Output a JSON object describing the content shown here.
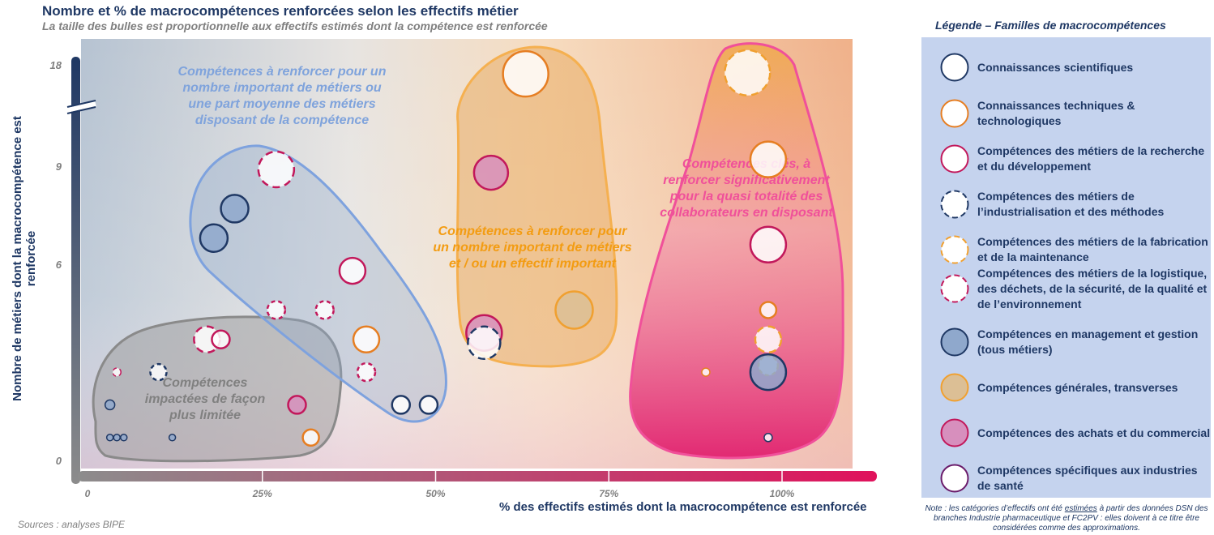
{
  "title": "Nombre et % de macrocompétences renforcées selon les effectifs métier",
  "subtitle": "La taille des bulles est proportionnelle aux effectifs estimés dont la compétence est renforcée",
  "sources": "Sources : analyses BIPE",
  "note_before": "Note : les catégories d’effectifs ont été ",
  "note_underlined": "estimées",
  "note_after": " à partir des données DSN des branches Industrie pharmaceutique et FC2PV : elles doivent à ce titre être considérées comme des approximations.",
  "legend": {
    "title": "Légende – Familles de macrocompétences",
    "items": [
      {
        "label": "Connaissances scientifiques",
        "stroke": "#1f3864",
        "fill": "#ffffff",
        "dashed": false
      },
      {
        "label": "Connaissances techniques & technologiques",
        "stroke": "#e67e22",
        "fill": "#ffffff",
        "dashed": false
      },
      {
        "label": "Compétences des métiers de la recherche et du développement",
        "stroke": "#c2185b",
        "fill": "#ffffff",
        "dashed": false
      },
      {
        "label": "Compétences des métiers de l’industrialisation et des méthodes",
        "stroke": "#1f3864",
        "fill": "#ffffff",
        "dashed": true
      },
      {
        "label": "Compétences des métiers de la fabrication et de la maintenance",
        "stroke": "#f0a030",
        "fill": "#ffffff",
        "dashed": true
      },
      {
        "label": "Compétences des métiers de la logistique, des déchets, de la sécurité, de la qualité et de l’environnement",
        "stroke": "#c2185b",
        "fill": "#ffffff",
        "dashed": true
      },
      {
        "label": "Compétences en management et gestion (tous métiers)",
        "stroke": "#1f3864",
        "fill": "#8fa8cc",
        "dashed": false
      },
      {
        "label": "Compétences générales, transverses",
        "stroke": "#f0a030",
        "fill": "#dcbf95",
        "dashed": false
      },
      {
        "label": "Compétences des achats et du commercial",
        "stroke": "#c2185b",
        "fill": "#d78fbd",
        "dashed": false
      },
      {
        "label": "Compétences spécifiques aux industries de santé",
        "stroke": "#6a1b6a",
        "fill": "#ffffff",
        "dashed": false
      }
    ]
  },
  "zones": [
    {
      "label_lines": [
        "Compétences à renforcer pour un",
        "nombre important de métiers ou",
        "une part moyenne des métiers",
        "disposant de la compétence"
      ],
      "color": "#7fa3dc"
    },
    {
      "label_lines": [
        "Compétences à renforcer pour",
        "un nombre important de métiers",
        "et / ou  un effectif important"
      ],
      "color": "#f39c12"
    },
    {
      "label_lines": [
        "Compétences clés, à",
        "renforcer significativement",
        "pour la quasi totalité des",
        "collaborateurs en disposant"
      ],
      "color": "#f0509a"
    },
    {
      "label_lines": [
        "Compétences",
        "impactées de façon",
        "plus limitée"
      ],
      "color": "#808080"
    }
  ],
  "chart_data": {
    "type": "scatter",
    "title": "Nombre et % de macrocompétences renforcées selon les effectifs métier",
    "xlabel": "% des effectifs estimés dont la macrocompétence est renforcée",
    "ylabel": "Nombre de métiers dont la macrocompétence est renforcée",
    "x_ticks": [
      "0",
      "25%",
      "50%",
      "75%",
      "100%"
    ],
    "y_ticks": [
      "0",
      "6",
      "9",
      "18"
    ],
    "xlim": [
      0,
      1
    ],
    "y_axis_note": "axis broken between 9 and 18",
    "grid": false,
    "legend_position": "right",
    "points": [
      {
        "family": 2,
        "x": 0.63,
        "y": 17.2,
        "size": 28
      },
      {
        "family": 5,
        "x": 0.95,
        "y": 17.3,
        "size": 28
      },
      {
        "family": 2,
        "x": 0.98,
        "y": 9.6,
        "size": 22
      },
      {
        "family": 9,
        "x": 0.58,
        "y": 8.8,
        "size": 21
      },
      {
        "family": 6,
        "x": 0.27,
        "y": 8.9,
        "size": 22
      },
      {
        "family": 7,
        "x": 0.21,
        "y": 7.7,
        "size": 17
      },
      {
        "family": 7,
        "x": 0.18,
        "y": 6.8,
        "size": 17
      },
      {
        "family": 3,
        "x": 0.98,
        "y": 6.6,
        "size": 22
      },
      {
        "family": 3,
        "x": 0.38,
        "y": 5.8,
        "size": 16
      },
      {
        "family": 8,
        "x": 0.7,
        "y": 4.6,
        "size": 23
      },
      {
        "family": 6,
        "x": 0.27,
        "y": 4.6,
        "size": 11
      },
      {
        "family": 6,
        "x": 0.34,
        "y": 4.6,
        "size": 11
      },
      {
        "family": 2,
        "x": 0.98,
        "y": 4.6,
        "size": 10
      },
      {
        "family": 9,
        "x": 0.57,
        "y": 3.9,
        "size": 22
      },
      {
        "family": 4,
        "x": 0.57,
        "y": 3.6,
        "size": 20
      },
      {
        "family": 6,
        "x": 0.17,
        "y": 3.7,
        "size": 16
      },
      {
        "family": 3,
        "x": 0.19,
        "y": 3.7,
        "size": 11
      },
      {
        "family": 2,
        "x": 0.4,
        "y": 3.7,
        "size": 16
      },
      {
        "family": 5,
        "x": 0.98,
        "y": 3.7,
        "size": 16
      },
      {
        "family": 5,
        "x": 0.98,
        "y": 2.9,
        "size": 12
      },
      {
        "family": 7,
        "x": 0.98,
        "y": 2.7,
        "size": 22
      },
      {
        "family": 2,
        "x": 0.89,
        "y": 2.7,
        "size": 5
      },
      {
        "family": 6,
        "x": 0.4,
        "y": 2.7,
        "size": 11
      },
      {
        "family": 6,
        "x": 0.04,
        "y": 2.7,
        "size": 5
      },
      {
        "family": 4,
        "x": 0.1,
        "y": 2.7,
        "size": 10
      },
      {
        "family": 1,
        "x": 0.45,
        "y": 1.7,
        "size": 11
      },
      {
        "family": 1,
        "x": 0.49,
        "y": 1.7,
        "size": 11
      },
      {
        "family": 9,
        "x": 0.3,
        "y": 1.7,
        "size": 11
      },
      {
        "family": 7,
        "x": 0.03,
        "y": 1.7,
        "size": 6
      },
      {
        "family": 2,
        "x": 0.32,
        "y": 0.7,
        "size": 10
      },
      {
        "family": 7,
        "x": 0.03,
        "y": 0.7,
        "size": 4
      },
      {
        "family": 7,
        "x": 0.04,
        "y": 0.7,
        "size": 4
      },
      {
        "family": 7,
        "x": 0.05,
        "y": 0.7,
        "size": 4
      },
      {
        "family": 7,
        "x": 0.12,
        "y": 0.7,
        "size": 4
      },
      {
        "family": 1,
        "x": 0.98,
        "y": 0.7,
        "size": 5
      }
    ]
  }
}
